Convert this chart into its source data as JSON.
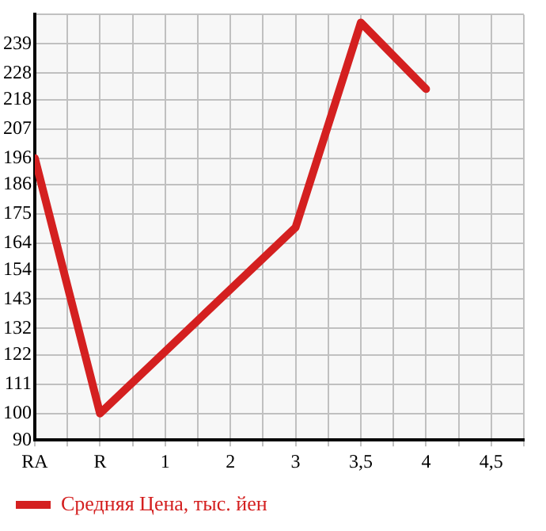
{
  "chart_data": {
    "type": "line",
    "categories": [
      "RA",
      "R",
      "1",
      "2",
      "3",
      "3,5",
      "4",
      "4,5"
    ],
    "series": [
      {
        "name": "Средняя Цена, тыс. йен",
        "color": "#d42020",
        "values": [
          196,
          100,
          null,
          null,
          170,
          247,
          222,
          null
        ]
      }
    ],
    "ylim": [
      90,
      250
    ],
    "yticks": [
      90,
      100,
      111,
      122,
      132,
      143,
      154,
      164,
      175,
      186,
      196,
      207,
      218,
      228,
      239,
      {
        "value": 250,
        "label": null
      }
    ],
    "grid": true,
    "legend": "bottom",
    "marker": "none",
    "line_style": "solid"
  }
}
